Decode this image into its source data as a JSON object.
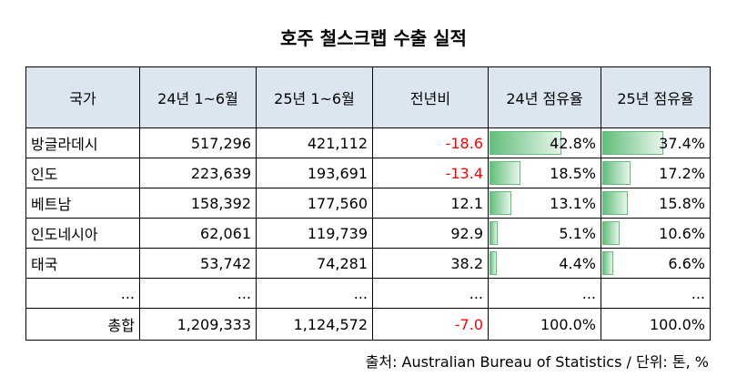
{
  "title": "호주 철스크랩 수출 실적",
  "headers": [
    "국가",
    "24년 1~6월",
    "25년 1~6월",
    "전년비",
    "24년 점유율",
    "25년 점유율"
  ],
  "rows": [
    {
      "country": "방글라데시",
      "y24": "517,296",
      "y25": "421,112",
      "yoy": "-18.6",
      "share24": "42.8%",
      "share24_value": 42.8,
      "share25": "37.4%",
      "share25_value": 37.4
    },
    {
      "country": "인도",
      "y24": "223,639",
      "y25": "193,691",
      "yoy": "-13.4",
      "share24": "18.5%",
      "share24_value": 18.5,
      "share25": "17.2%",
      "share25_value": 17.2
    },
    {
      "country": "베트남",
      "y24": "158,392",
      "y25": "177,560",
      "yoy": "12.1",
      "share24": "13.1%",
      "share24_value": 13.1,
      "share25": "15.8%",
      "share25_value": 15.8
    },
    {
      "country": "인도네시아",
      "y24": "62,061",
      "y25": "119,739",
      "yoy": "92.9",
      "share24": "5.1%",
      "share24_value": 5.1,
      "share25": "10.6%",
      "share25_value": 10.6
    },
    {
      "country": "태국",
      "y24": "53,742",
      "y25": "74,281",
      "yoy": "38.2",
      "share24": "4.4%",
      "share24_value": 4.4,
      "share25": "6.6%",
      "share25_value": 6.6
    }
  ],
  "ellipsis_row": [
    "...",
    "...",
    "...",
    "...",
    "...",
    "..."
  ],
  "total": {
    "label": "총합",
    "y24": "1,209,333",
    "y25": "1,124,572",
    "yoy": "-7.0",
    "share24": "100.0%",
    "share25": "100.0%"
  },
  "source": "출처: Australian Bureau of Statistics / 단위: 톤, %",
  "colors": {
    "header_bg": "#dce6f1",
    "negative": "#ff0000",
    "bar": "#63be7b"
  }
}
